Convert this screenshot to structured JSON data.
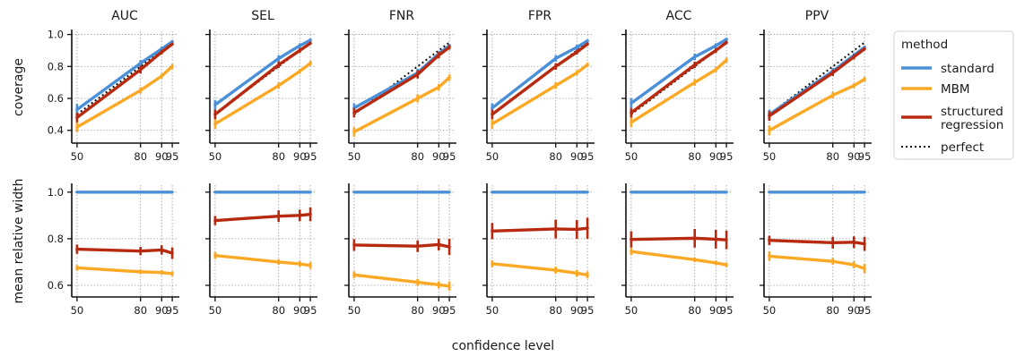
{
  "chart_data": {
    "type": "line",
    "xlabel": "confidence level",
    "x": [
      50,
      80,
      90,
      95
    ],
    "xticks": [
      50,
      80,
      90,
      95
    ],
    "xlim": [
      47.5,
      97.5
    ],
    "rows": [
      {
        "ylabel": "coverage",
        "ylim": [
          0.32,
          1.02
        ],
        "yticks": [
          0.4,
          0.6,
          0.8,
          1.0
        ],
        "yticklabels": [
          "0.4",
          "0.6",
          "0.8",
          "1.0"
        ],
        "show_perfect": true
      },
      {
        "ylabel": "mean relative width",
        "ylim": [
          0.55,
          1.03
        ],
        "yticks": [
          0.6,
          0.8,
          1.0
        ],
        "yticklabels": [
          "0.6",
          "0.8",
          "1.0"
        ],
        "show_perfect": false
      }
    ],
    "panels": [
      "AUC",
      "SEL",
      "FNR",
      "FPR",
      "ACC",
      "PPV"
    ],
    "series_keys": [
      "standard",
      "MBM",
      "structured_regression"
    ],
    "series_colors": {
      "standard": "#4a90d9",
      "MBM": "#fba925",
      "structured_regression": "#b82a10",
      "perfect": "#111111"
    },
    "coverage": {
      "AUC": {
        "standard": [
          0.53,
          0.82,
          0.91,
          0.955
        ],
        "MBM": [
          0.42,
          0.65,
          0.74,
          0.8
        ],
        "structured_regression": [
          0.48,
          0.78,
          0.89,
          0.94
        ]
      },
      "SEL": {
        "standard": [
          0.56,
          0.85,
          0.93,
          0.965
        ],
        "MBM": [
          0.44,
          0.68,
          0.77,
          0.82
        ],
        "structured_regression": [
          0.5,
          0.81,
          0.9,
          0.945
        ]
      },
      "FNR": {
        "standard": [
          0.54,
          0.76,
          0.88,
          0.93
        ],
        "MBM": [
          0.39,
          0.6,
          0.67,
          0.73
        ],
        "structured_regression": [
          0.51,
          0.75,
          0.87,
          0.92
        ]
      },
      "FPR": {
        "standard": [
          0.54,
          0.85,
          0.92,
          0.96
        ],
        "MBM": [
          0.44,
          0.68,
          0.76,
          0.81
        ],
        "structured_regression": [
          0.5,
          0.8,
          0.89,
          0.94
        ]
      },
      "ACC": {
        "standard": [
          0.57,
          0.86,
          0.93,
          0.97
        ],
        "MBM": [
          0.45,
          0.7,
          0.78,
          0.84
        ],
        "structured_regression": [
          0.51,
          0.81,
          0.9,
          0.95
        ]
      },
      "PPV": {
        "standard": [
          0.5,
          0.77,
          0.87,
          0.92
        ],
        "MBM": [
          0.4,
          0.62,
          0.68,
          0.72
        ],
        "structured_regression": [
          0.49,
          0.76,
          0.86,
          0.91
        ]
      }
    },
    "coverage_errors": {
      "AUC": {
        "standard": [
          0.035,
          0.02,
          0.015,
          0.01
        ],
        "MBM": [
          0.03,
          0.02,
          0.015,
          0.015
        ],
        "structured_regression": [
          0.03,
          0.025,
          0.015,
          0.01
        ]
      },
      "SEL": {
        "standard": [
          0.03,
          0.02,
          0.015,
          0.01
        ],
        "MBM": [
          0.03,
          0.02,
          0.015,
          0.015
        ],
        "structured_regression": [
          0.03,
          0.02,
          0.015,
          0.01
        ]
      },
      "FNR": {
        "standard": [
          0.03,
          0.025,
          0.015,
          0.01
        ],
        "MBM": [
          0.03,
          0.025,
          0.02,
          0.02
        ],
        "structured_regression": [
          0.03,
          0.025,
          0.02,
          0.015
        ]
      },
      "FPR": {
        "standard": [
          0.03,
          0.02,
          0.015,
          0.01
        ],
        "MBM": [
          0.03,
          0.02,
          0.015,
          0.015
        ],
        "structured_regression": [
          0.03,
          0.02,
          0.015,
          0.01
        ]
      },
      "ACC": {
        "standard": [
          0.03,
          0.02,
          0.015,
          0.01
        ],
        "MBM": [
          0.03,
          0.02,
          0.015,
          0.015
        ],
        "structured_regression": [
          0.03,
          0.02,
          0.015,
          0.01
        ]
      },
      "PPV": {
        "standard": [
          0.03,
          0.02,
          0.015,
          0.01
        ],
        "MBM": [
          0.03,
          0.02,
          0.015,
          0.015
        ],
        "structured_regression": [
          0.03,
          0.02,
          0.015,
          0.01
        ]
      }
    },
    "width": {
      "AUC": {
        "standard": [
          1.0,
          1.0,
          1.0,
          1.0
        ],
        "MBM": [
          0.675,
          0.658,
          0.655,
          0.65
        ],
        "structured_regression": [
          0.755,
          0.747,
          0.752,
          0.738
        ]
      },
      "SEL": {
        "standard": [
          1.0,
          1.0,
          1.0,
          1.0
        ],
        "MBM": [
          0.728,
          0.7,
          0.692,
          0.685
        ],
        "structured_regression": [
          0.878,
          0.897,
          0.9,
          0.905
        ]
      },
      "FNR": {
        "standard": [
          1.0,
          1.0,
          1.0,
          1.0
        ],
        "MBM": [
          0.645,
          0.613,
          0.602,
          0.597
        ],
        "structured_regression": [
          0.773,
          0.768,
          0.775,
          0.765
        ]
      },
      "FPR": {
        "standard": [
          1.0,
          1.0,
          1.0,
          1.0
        ],
        "MBM": [
          0.693,
          0.665,
          0.652,
          0.645
        ],
        "structured_regression": [
          0.833,
          0.842,
          0.84,
          0.845
        ]
      },
      "ACC": {
        "standard": [
          1.0,
          1.0,
          1.0,
          1.0
        ],
        "MBM": [
          0.745,
          0.71,
          0.696,
          0.688
        ],
        "structured_regression": [
          0.797,
          0.802,
          0.798,
          0.795
        ]
      },
      "PPV": {
        "standard": [
          1.0,
          1.0,
          1.0,
          1.0
        ],
        "MBM": [
          0.725,
          0.703,
          0.688,
          0.672
        ],
        "structured_regression": [
          0.793,
          0.783,
          0.785,
          0.778
        ]
      }
    },
    "width_errors": {
      "AUC": {
        "standard": [
          0.003,
          0.003,
          0.003,
          0.003
        ],
        "MBM": [
          0.012,
          0.01,
          0.01,
          0.01
        ],
        "structured_regression": [
          0.02,
          0.018,
          0.02,
          0.025
        ]
      },
      "SEL": {
        "standard": [
          0.003,
          0.003,
          0.003,
          0.003
        ],
        "MBM": [
          0.015,
          0.012,
          0.012,
          0.015
        ],
        "structured_regression": [
          0.02,
          0.025,
          0.025,
          0.03
        ]
      },
      "FNR": {
        "standard": [
          0.003,
          0.003,
          0.003,
          0.003
        ],
        "MBM": [
          0.015,
          0.015,
          0.015,
          0.02
        ],
        "structured_regression": [
          0.025,
          0.025,
          0.025,
          0.035
        ]
      },
      "FPR": {
        "standard": [
          0.003,
          0.003,
          0.003,
          0.003
        ],
        "MBM": [
          0.015,
          0.015,
          0.015,
          0.015
        ],
        "structured_regression": [
          0.035,
          0.04,
          0.04,
          0.045
        ]
      },
      "ACC": {
        "standard": [
          0.003,
          0.003,
          0.003,
          0.003
        ],
        "MBM": [
          0.015,
          0.01,
          0.01,
          0.01
        ],
        "structured_regression": [
          0.035,
          0.04,
          0.04,
          0.04
        ]
      },
      "PPV": {
        "standard": [
          0.003,
          0.003,
          0.003,
          0.003
        ],
        "MBM": [
          0.02,
          0.015,
          0.015,
          0.02
        ],
        "structured_regression": [
          0.02,
          0.025,
          0.025,
          0.03
        ]
      }
    },
    "grid": true,
    "legend": {
      "title": "method",
      "placement": "right",
      "entries": [
        {
          "key": "standard",
          "label": "standard",
          "style": "solid"
        },
        {
          "key": "MBM",
          "label": "MBM",
          "style": "solid"
        },
        {
          "key": "structured_regression",
          "label": "structured\nregression",
          "style": "solid"
        },
        {
          "key": "perfect",
          "label": "perfect",
          "style": "dotted"
        }
      ]
    }
  }
}
